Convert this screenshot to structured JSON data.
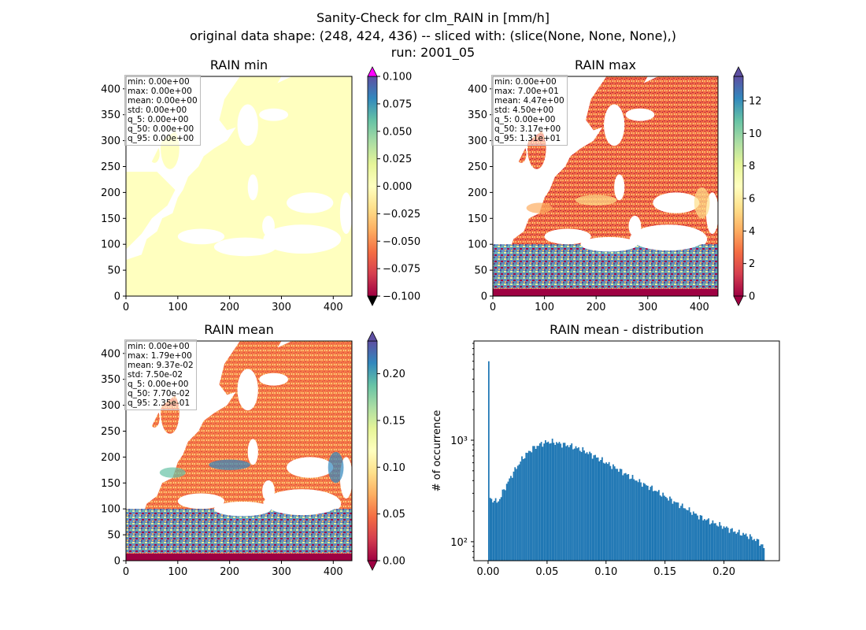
{
  "figure": {
    "title_line1": "Sanity-Check for clm_RAIN in [mm/h]",
    "title_line2": "original data shape: (248, 424, 436) -- sliced with: (slice(None, None, None),)",
    "title_line3": "run: 2001_05"
  },
  "colors": {
    "cmap": "Spectral",
    "background": "#ffffff",
    "hist_bar": "#1f77b4",
    "stats_box_edge": "#bbbbbb"
  },
  "chart_data": [
    {
      "type": "heatmap",
      "title": "RAIN min",
      "xlim": [
        0,
        436
      ],
      "ylim": [
        0,
        424
      ],
      "x_ticks": [
        0,
        100,
        200,
        300,
        400
      ],
      "y_ticks": [
        0,
        50,
        100,
        150,
        200,
        250,
        300,
        350,
        400
      ],
      "colorbar": {
        "range": [
          -0.1,
          0.1
        ],
        "ticks": [
          "0.100",
          "0.075",
          "0.050",
          "0.025",
          "0.000",
          "−0.025",
          "−0.050",
          "−0.075",
          "−0.100"
        ],
        "extend": "both"
      },
      "stats": [
        "min: 0.00e+00",
        "max: 0.00e+00",
        "mean: 0.00e+00",
        "std: 0.00e+00",
        "q_5: 0.00e+00",
        "q_50: 0.00e+00",
        "q_95: 0.00e+00"
      ],
      "field_description": "uniform value 0.0 over land domain (pale yellow)"
    },
    {
      "type": "heatmap",
      "title": "RAIN max",
      "xlim": [
        0,
        436
      ],
      "ylim": [
        0,
        424
      ],
      "x_ticks": [
        0,
        100,
        200,
        300,
        400
      ],
      "y_ticks": [
        0,
        50,
        100,
        150,
        200,
        250,
        300,
        350,
        400
      ],
      "colorbar": {
        "range": [
          0,
          13.5
        ],
        "ticks": [
          "12",
          "10",
          "8",
          "6",
          "4",
          "2",
          "0"
        ],
        "extend": "both"
      },
      "stats": [
        "min: 0.00e+00",
        "max: 7.00e+01",
        "mean: 4.47e+00",
        "std: 4.50e+00",
        "q_5: 0.00e+00",
        "q_50: 3.17e+00",
        "q_95: 1.31e+01"
      ]
    },
    {
      "type": "heatmap",
      "title": "RAIN mean",
      "xlim": [
        0,
        436
      ],
      "ylim": [
        0,
        424
      ],
      "x_ticks": [
        0,
        100,
        200,
        300,
        400
      ],
      "y_ticks": [
        0,
        50,
        100,
        150,
        200,
        250,
        300,
        350,
        400
      ],
      "colorbar": {
        "range": [
          0,
          0.235
        ],
        "ticks": [
          "0.20",
          "0.15",
          "0.10",
          "0.05",
          "0.00"
        ],
        "extend": "both"
      },
      "stats": [
        "min: 0.00e+00",
        "max: 1.79e+00",
        "mean: 9.37e-02",
        "std: 7.50e-02",
        "q_5: 0.00e+00",
        "q_50: 7.70e-02",
        "q_95: 2.35e-01"
      ]
    },
    {
      "type": "bar",
      "title": "RAIN mean - distribution",
      "xlabel": "",
      "ylabel": "# of occurrence",
      "yscale": "log",
      "xlim": [
        -0.012,
        0.247
      ],
      "ylim": [
        65,
        9500
      ],
      "x_ticks": [
        "0.00",
        "0.05",
        "0.10",
        "0.15",
        "0.20"
      ],
      "y_ticks": [
        "10²",
        "10³"
      ],
      "bin_range": [
        0.0,
        0.2345
      ],
      "bin_count": 200,
      "anchor_points": [
        [
          0.0,
          6000
        ],
        [
          0.001,
          280
        ],
        [
          0.003,
          250
        ],
        [
          0.005,
          265
        ],
        [
          0.008,
          240
        ],
        [
          0.012,
          300
        ],
        [
          0.016,
          370
        ],
        [
          0.02,
          450
        ],
        [
          0.025,
          560
        ],
        [
          0.03,
          680
        ],
        [
          0.035,
          780
        ],
        [
          0.04,
          860
        ],
        [
          0.045,
          920
        ],
        [
          0.05,
          960
        ],
        [
          0.055,
          960
        ],
        [
          0.06,
          930
        ],
        [
          0.07,
          880
        ],
        [
          0.08,
          800
        ],
        [
          0.09,
          700
        ],
        [
          0.1,
          600
        ],
        [
          0.11,
          520
        ],
        [
          0.12,
          440
        ],
        [
          0.13,
          380
        ],
        [
          0.14,
          330
        ],
        [
          0.15,
          280
        ],
        [
          0.16,
          240
        ],
        [
          0.17,
          205
        ],
        [
          0.18,
          175
        ],
        [
          0.19,
          155
        ],
        [
          0.2,
          140
        ],
        [
          0.21,
          125
        ],
        [
          0.22,
          115
        ],
        [
          0.23,
          100
        ],
        [
          0.2345,
          85
        ]
      ]
    }
  ]
}
